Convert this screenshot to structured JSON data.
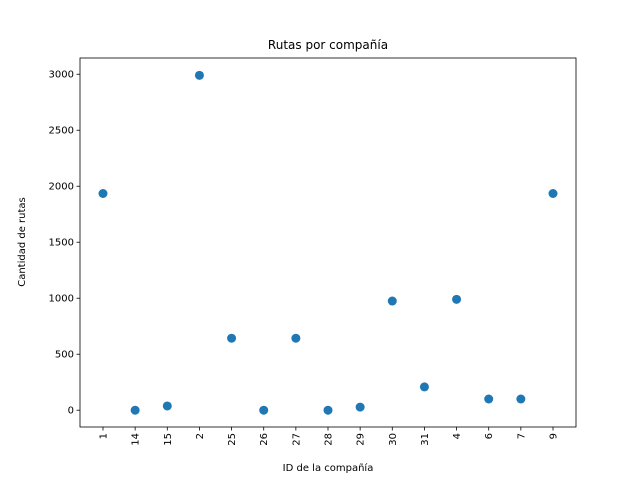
{
  "chart_data": {
    "type": "scatter",
    "title": "Rutas por compañía",
    "xlabel": "ID de la compañía",
    "ylabel": "Cantidad de rutas",
    "categories": [
      "1",
      "14",
      "15",
      "2",
      "25",
      "26",
      "27",
      "28",
      "29",
      "30",
      "31",
      "4",
      "6",
      "7",
      "9"
    ],
    "values": [
      1935,
      0,
      38,
      2990,
      643,
      0,
      643,
      0,
      28,
      975,
      208,
      990,
      100,
      100,
      1935
    ],
    "ylim": [
      -150,
      3145
    ],
    "yticks": [
      0,
      500,
      1000,
      1500,
      2000,
      2500,
      3000
    ],
    "grid": false,
    "marker_color": "#1f77b4"
  }
}
